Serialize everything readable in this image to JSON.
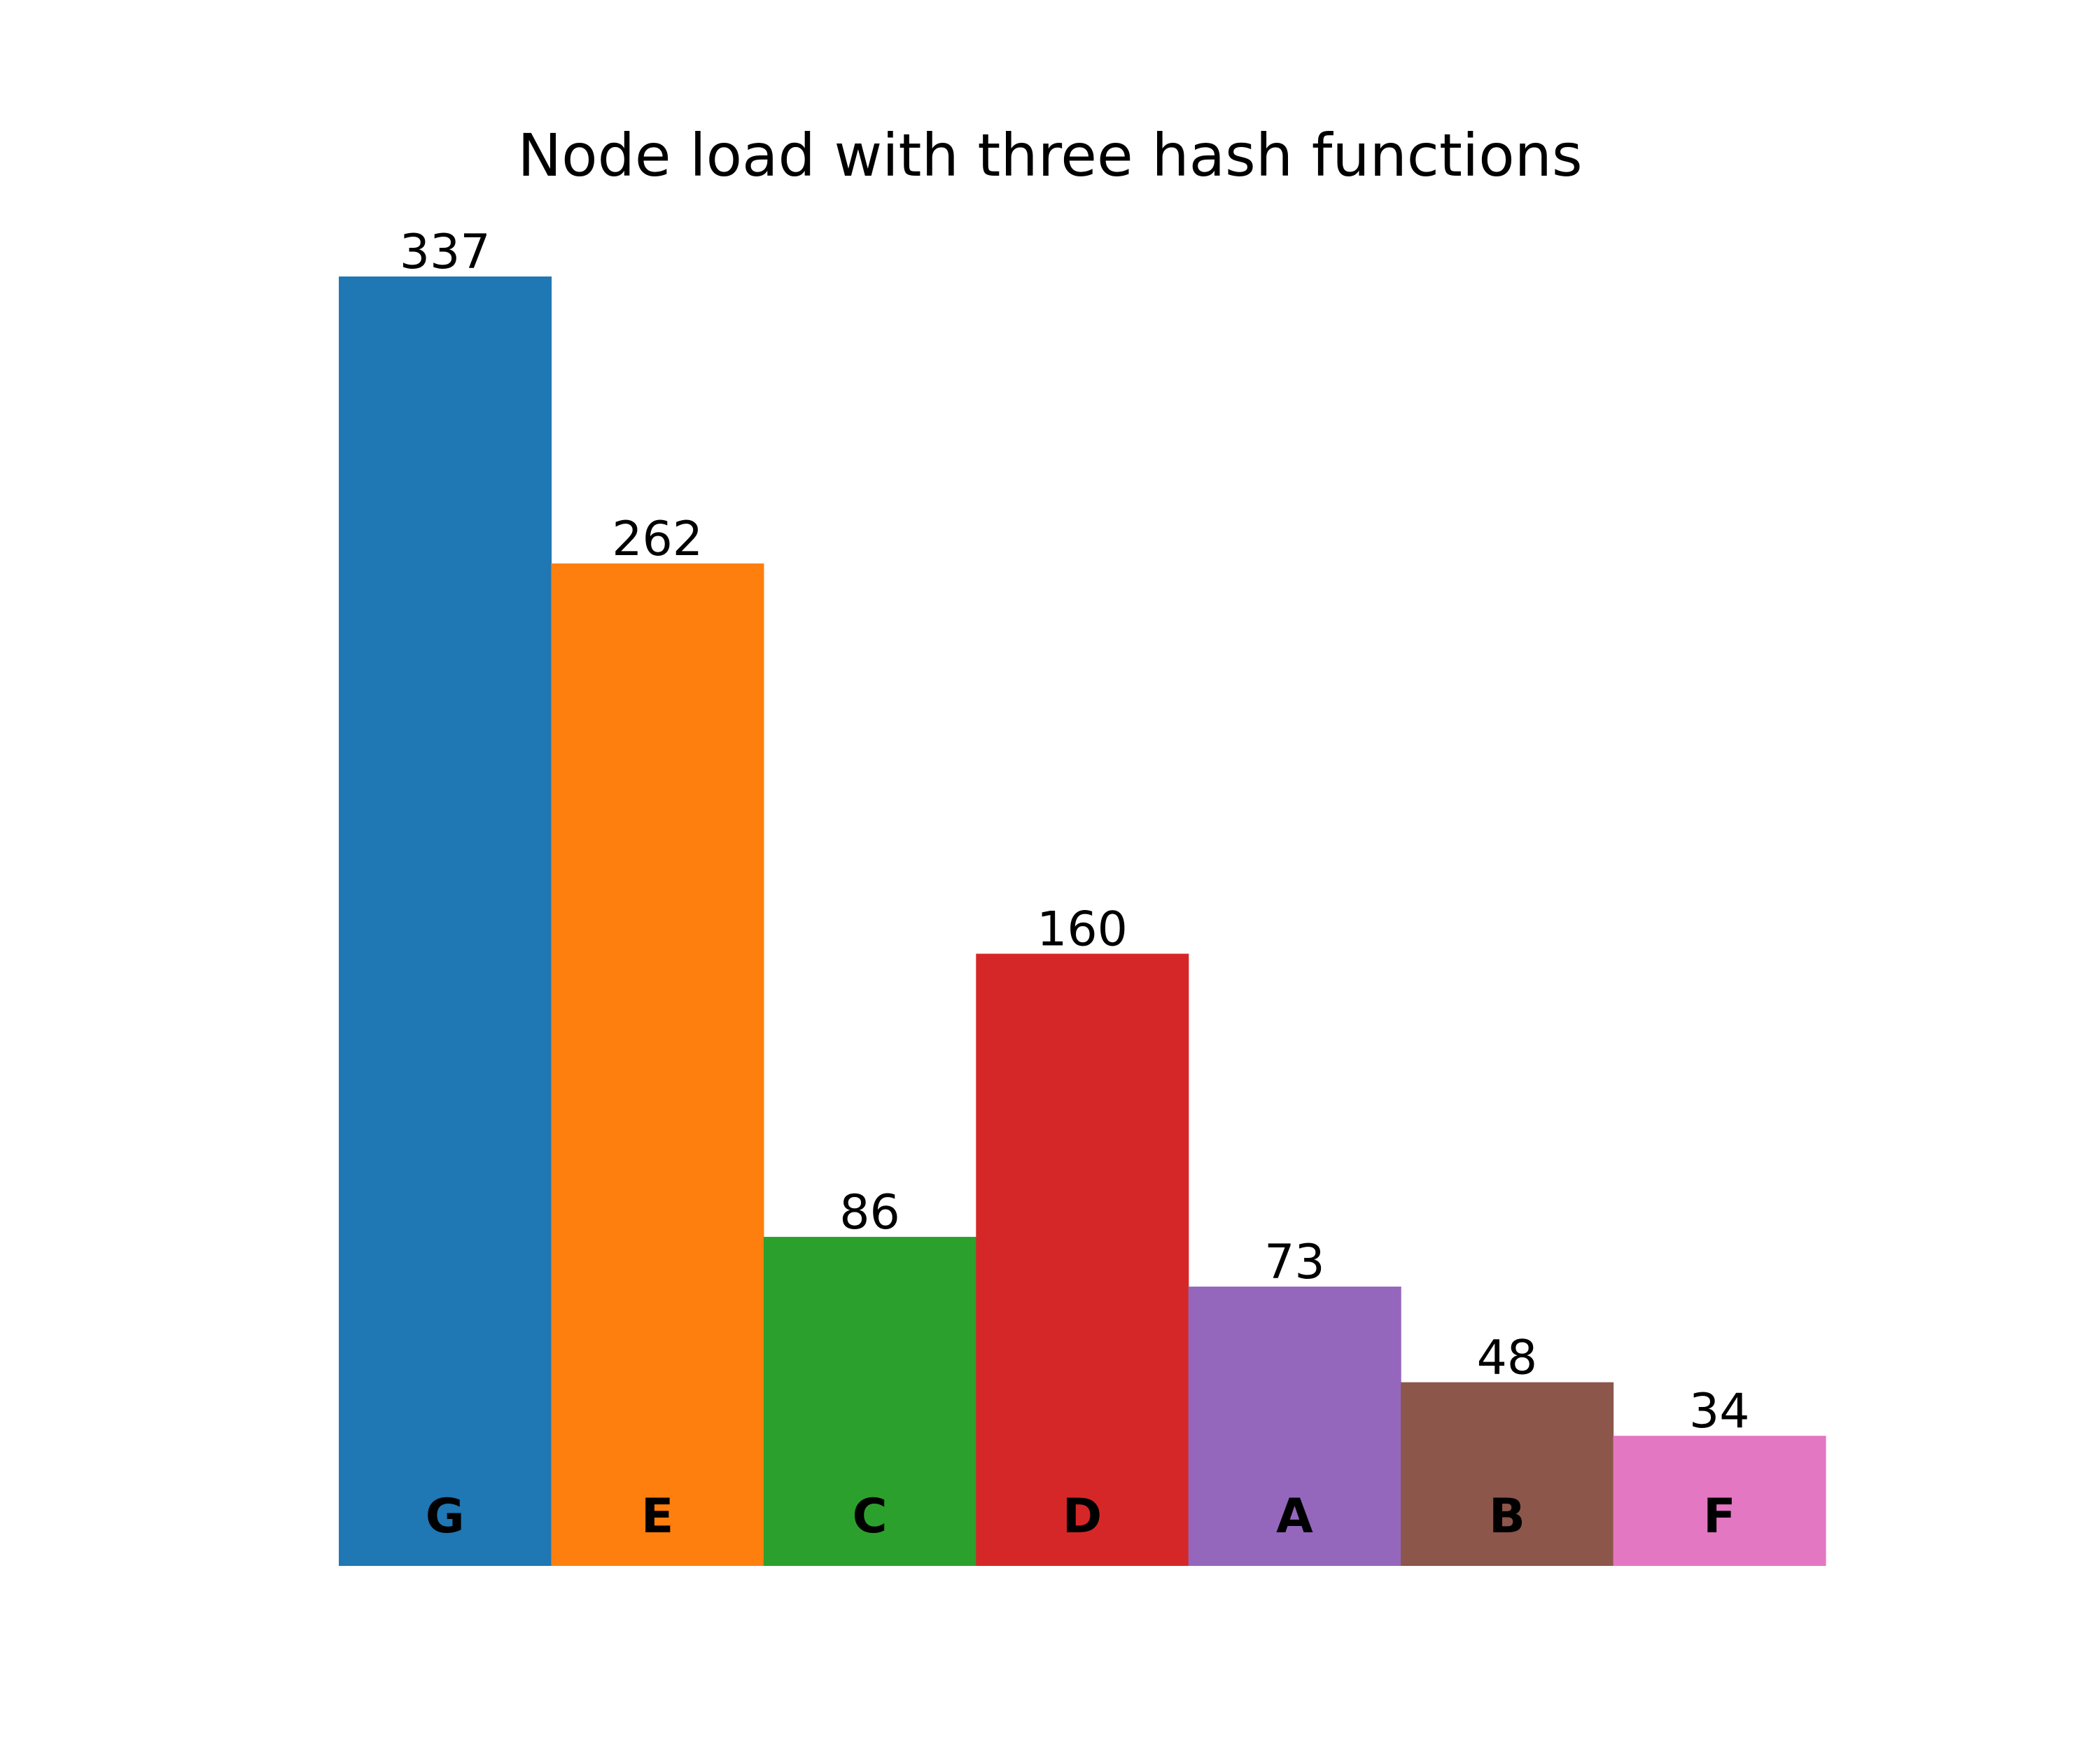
{
  "chart_data": {
    "type": "bar",
    "title": "Node load with three hash functions",
    "xlabel": "",
    "ylabel": "",
    "categories": [
      "G",
      "E",
      "C",
      "D",
      "A",
      "B",
      "F"
    ],
    "values": [
      337,
      262,
      86,
      160,
      73,
      48,
      34
    ],
    "colors": [
      "#1f77b4",
      "#ff7f0e",
      "#2ca02c",
      "#d62728",
      "#9467bd",
      "#8c564b",
      "#e377c2"
    ],
    "ylim": [
      0,
      337
    ],
    "grid": false,
    "legend": "none",
    "axes_visible": false,
    "value_labels": true,
    "category_labels_inside_bars": true
  }
}
